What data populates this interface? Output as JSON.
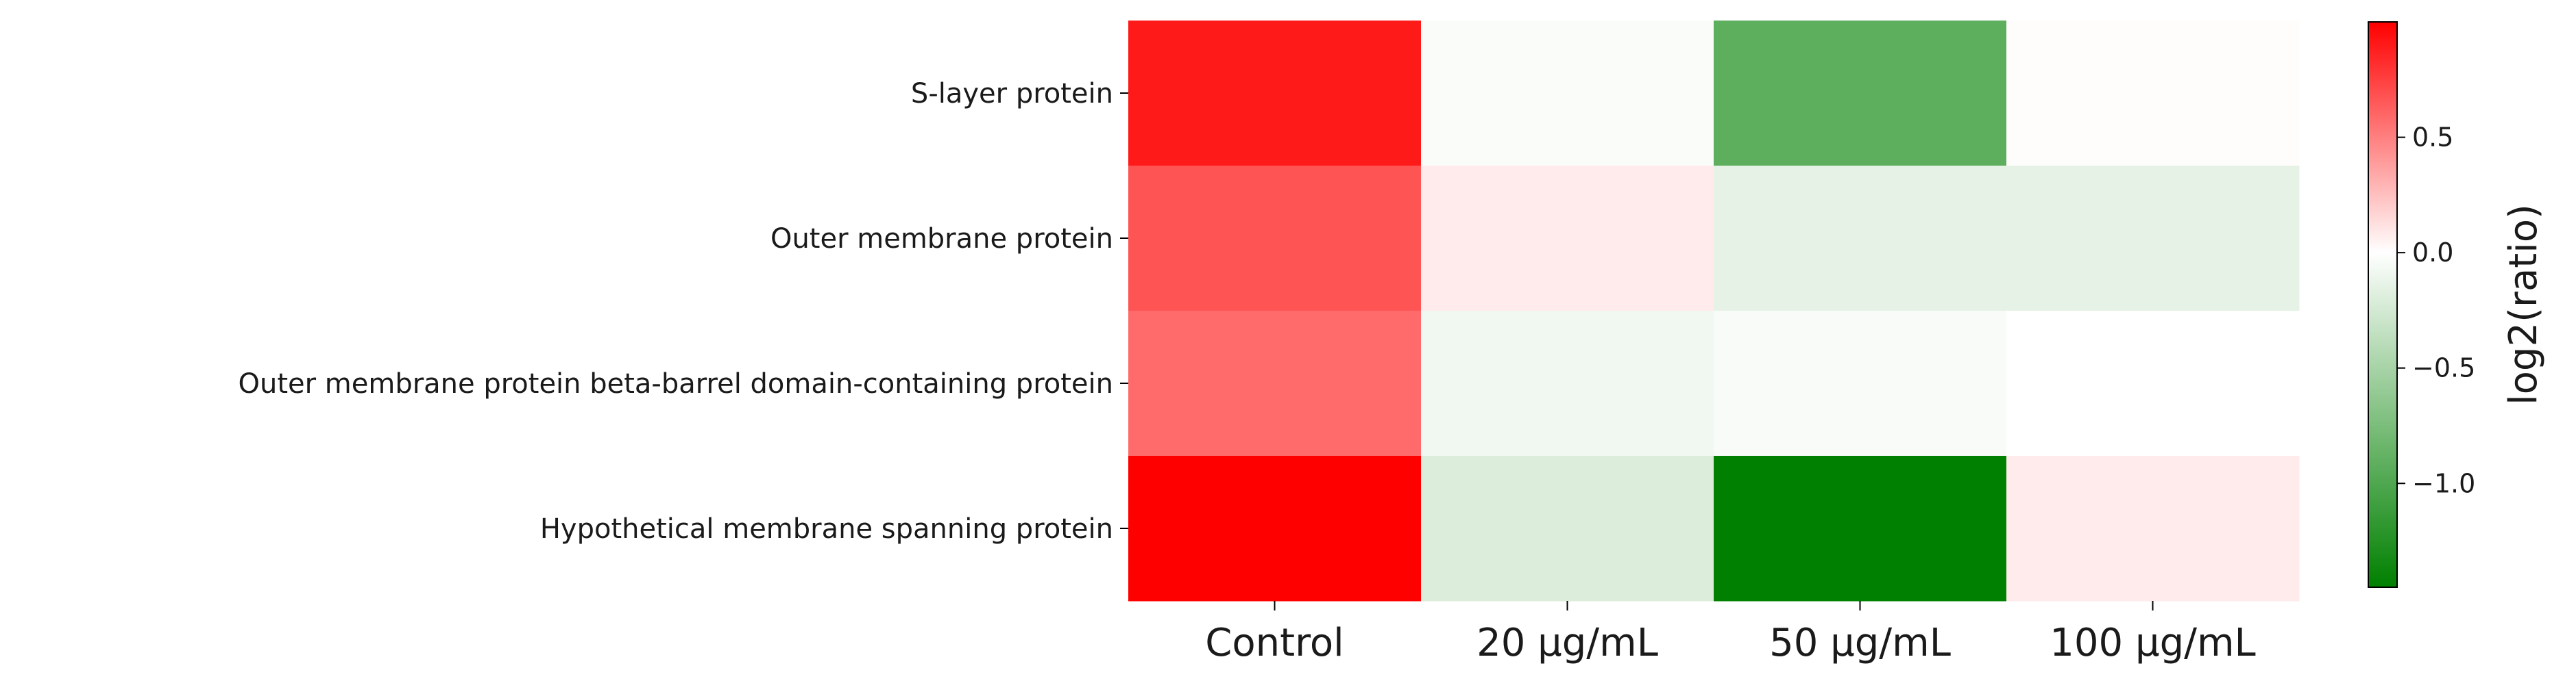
{
  "chart_data": {
    "type": "heatmap",
    "rows": [
      "S-layer protein",
      "Outer membrane protein",
      "Outer membrane protein beta-barrel domain-containing protein",
      "Hypothetical membrane spanning protein"
    ],
    "columns": [
      "Control",
      "20 μg/mL",
      "50 μg/mL",
      "100 μg/mL"
    ],
    "values": [
      [
        0.9,
        -0.03,
        -0.92,
        0.01
      ],
      [
        0.67,
        0.08,
        -0.15,
        -0.15
      ],
      [
        0.58,
        -0.08,
        -0.04,
        0.0
      ],
      [
        1.0,
        -0.2,
        -1.45,
        0.08
      ]
    ],
    "colormap": {
      "low": "#008000",
      "mid": "#ffffff",
      "high": "#ff0000"
    },
    "vmin": -1.45,
    "vmax": 1.0,
    "colorbar": {
      "label": "log2(ratio)",
      "ticks": [
        0.5,
        0.0,
        -0.5,
        -1.0
      ],
      "tick_labels": [
        "0.5",
        "0.0",
        "−0.5",
        "−1.0"
      ]
    }
  }
}
